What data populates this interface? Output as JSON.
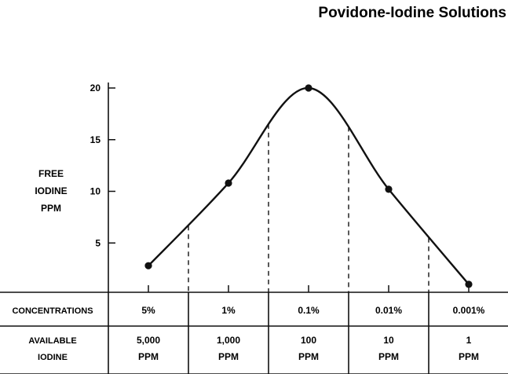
{
  "chart_data": {
    "type": "line",
    "title": "Povidone-Iodine Solutions",
    "ylabel_lines": [
      "FREE",
      "IODINE",
      "PPM"
    ],
    "xlabel": "",
    "ylim": [
      0,
      20
    ],
    "y_ticks": [
      5,
      10,
      15,
      20
    ],
    "grid": false,
    "categories": [
      "5%",
      "1%",
      "0.1%",
      "0.01%",
      "0.001%"
    ],
    "values": [
      2.8,
      10.8,
      20,
      10.2,
      1.0
    ],
    "table": {
      "row1_label": "CONCENTRATIONS",
      "row2_label_lines": [
        "AVAILABLE",
        "IODINE"
      ],
      "available_iodine": [
        [
          "5,000",
          "PPM"
        ],
        [
          "1,000",
          "PPM"
        ],
        [
          "100",
          "PPM"
        ],
        [
          "10",
          "PPM"
        ],
        [
          "1",
          "PPM"
        ]
      ]
    }
  }
}
